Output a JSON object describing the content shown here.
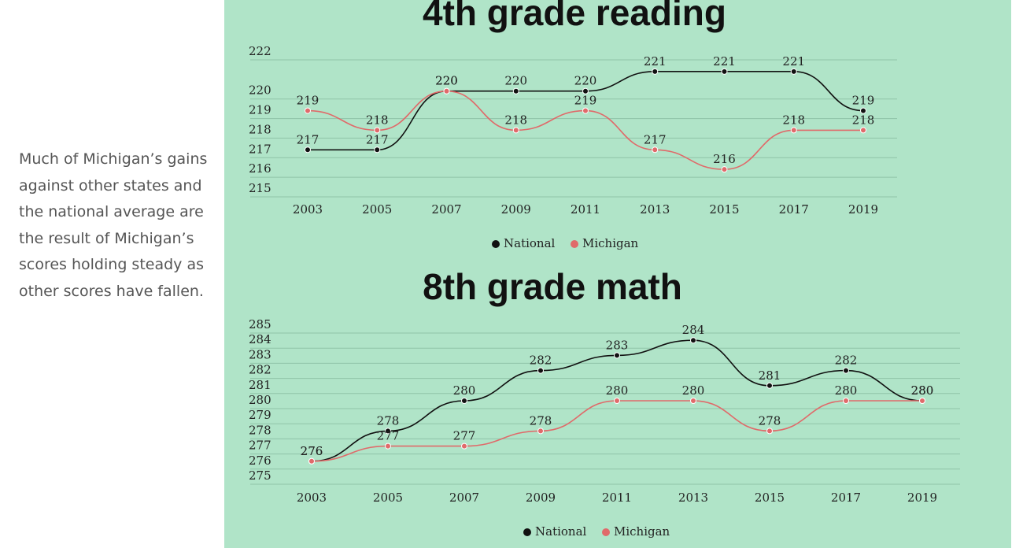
{
  "text": "Much of Michigan’s gains against other states and the national average are the result of Michigan’s scores holding steady as other scores have fallen.",
  "chart_data": [
    {
      "type": "line",
      "title": "4th grade reading",
      "categories": [
        "2003",
        "2005",
        "2007",
        "2009",
        "2011",
        "2013",
        "2015",
        "2017",
        "2019"
      ],
      "series": [
        {
          "name": "National",
          "color": "#111111",
          "values": [
            217,
            217,
            220,
            220,
            220,
            221,
            221,
            221,
            219
          ]
        },
        {
          "name": "Michigan",
          "color": "#e06a6a",
          "values": [
            219,
            218,
            220,
            218,
            219,
            217,
            216,
            218,
            218
          ]
        }
      ],
      "ylim": [
        215,
        222
      ],
      "yticks": [
        215,
        216,
        217,
        218,
        219,
        220,
        222
      ],
      "grid": true,
      "legend": "bottom"
    },
    {
      "type": "line",
      "title": "8th grade math",
      "categories": [
        "2003",
        "2005",
        "2007",
        "2009",
        "2011",
        "2013",
        "2015",
        "2017",
        "2019"
      ],
      "series": [
        {
          "name": "National",
          "color": "#111111",
          "values": [
            276,
            278,
            280,
            282,
            283,
            284,
            281,
            282,
            280
          ]
        },
        {
          "name": "Michigan",
          "color": "#e06a6a",
          "values": [
            276,
            277,
            277,
            278,
            280,
            280,
            278,
            280,
            280
          ]
        }
      ],
      "ylim": [
        275,
        285
      ],
      "yticks": [
        275,
        276,
        277,
        278,
        279,
        280,
        281,
        282,
        283,
        284,
        285
      ],
      "grid": true,
      "legend": "bottom"
    }
  ]
}
